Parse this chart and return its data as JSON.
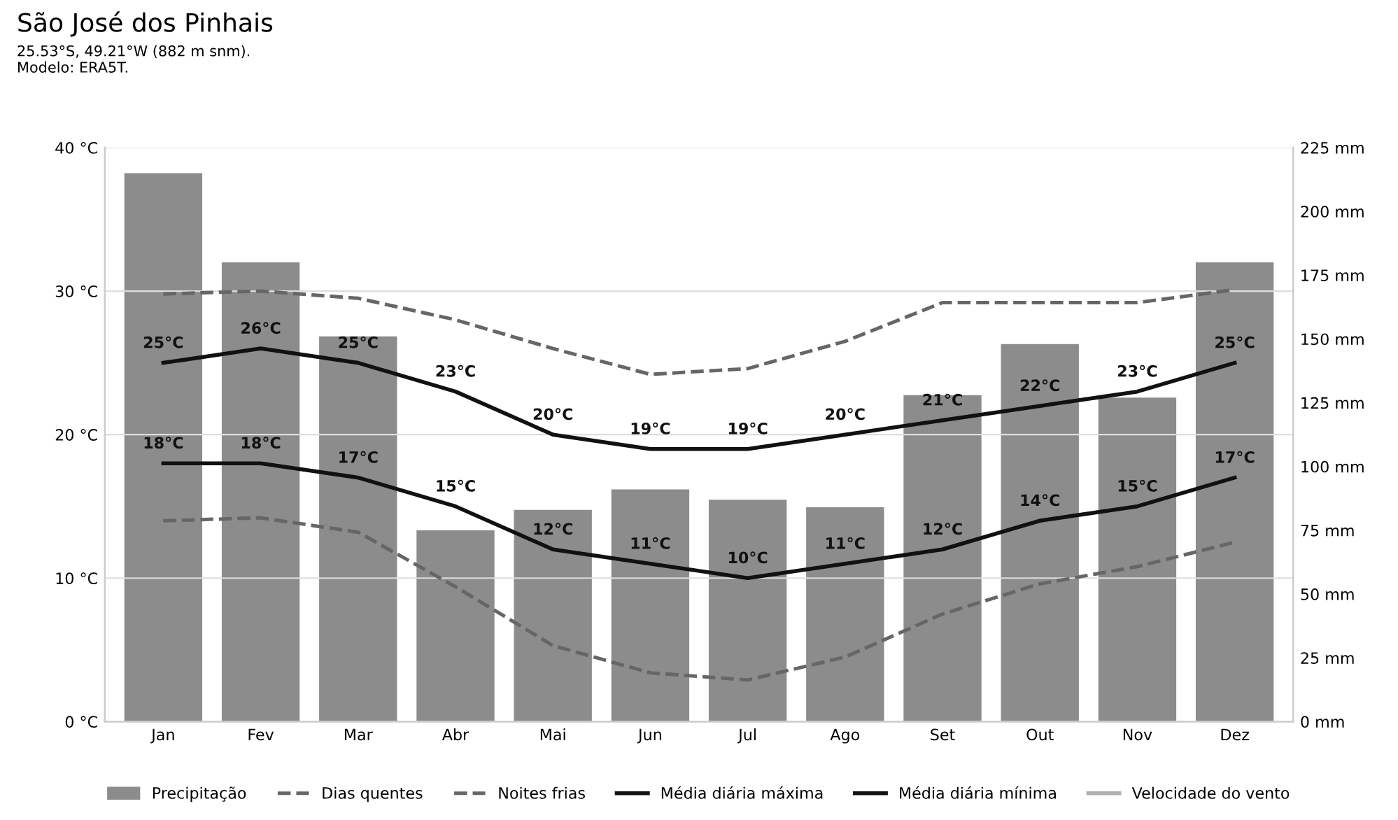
{
  "chart_data": {
    "type": "line",
    "title": "São José dos Pinhais",
    "subtitle": "25.53°S, 49.21°W (882 m snm).\nModelo: ERA5T.",
    "categories": [
      "Jan",
      "Fev",
      "Mar",
      "Abr",
      "Mai",
      "Jun",
      "Jul",
      "Ago",
      "Set",
      "Out",
      "Nov",
      "Dez"
    ],
    "series": [
      {
        "name": "Precipitação",
        "type": "bar",
        "axis": "y2",
        "color": "#8c8c8c",
        "values": [
          215,
          180,
          151,
          75,
          83,
          91,
          87,
          84,
          128,
          148,
          127,
          180
        ]
      },
      {
        "name": "Dias quentes",
        "line_style": "dashed",
        "color": "#666666",
        "values": [
          29.8,
          30,
          29.5,
          28,
          26,
          24.2,
          24.6,
          26.5,
          29.2,
          29.2,
          29.2,
          30.1
        ]
      },
      {
        "name": "Noites frias",
        "line_style": "dashed",
        "color": "#666666",
        "values": [
          14,
          14.2,
          13.2,
          9.4,
          5.3,
          3.4,
          2.9,
          4.5,
          7.5,
          9.6,
          10.8,
          12.5
        ]
      },
      {
        "name": "Média diária máxima",
        "line_style": "solid",
        "color": "#111111",
        "values": [
          25,
          26,
          25,
          23,
          20,
          19,
          19,
          20,
          21,
          22,
          23,
          25
        ],
        "value_labels": [
          "25°C",
          "26°C",
          "25°C",
          "23°C",
          "20°C",
          "19°C",
          "19°C",
          "20°C",
          "21°C",
          "22°C",
          "23°C",
          "25°C"
        ]
      },
      {
        "name": "Média diária mínima",
        "line_style": "solid",
        "color": "#111111",
        "values": [
          18,
          18,
          17,
          15,
          12,
          11,
          10,
          11,
          12,
          14,
          15,
          17
        ],
        "value_labels": [
          "18°C",
          "18°C",
          "17°C",
          "15°C",
          "12°C",
          "11°C",
          "10°C",
          "11°C",
          "12°C",
          "14°C",
          "15°C",
          "17°C"
        ]
      },
      {
        "name": "Velocidade do vento",
        "line_style": "solid",
        "color": "#b0b0b0",
        "values": [
          null,
          null,
          null,
          null,
          null,
          null,
          null,
          null,
          null,
          null,
          null,
          null
        ]
      }
    ],
    "ylim": [
      0,
      40
    ],
    "yticks": [
      {
        "value": 0,
        "label": "0 °C"
      },
      {
        "value": 10,
        "label": "10 °C"
      },
      {
        "value": 20,
        "label": "20 °C"
      },
      {
        "value": 30,
        "label": "30 °C"
      },
      {
        "value": 40,
        "label": "40 °C"
      }
    ],
    "y2lim": [
      0,
      225
    ],
    "y2ticks": [
      {
        "value": 0,
        "label": "0 mm"
      },
      {
        "value": 25,
        "label": "25 mm"
      },
      {
        "value": 50,
        "label": "50 mm"
      },
      {
        "value": 75,
        "label": "75 mm"
      },
      {
        "value": 100,
        "label": "100 mm"
      },
      {
        "value": 125,
        "label": "125 mm"
      },
      {
        "value": 150,
        "label": "150 mm"
      },
      {
        "value": 175,
        "label": "175 mm"
      },
      {
        "value": 200,
        "label": "200 mm"
      },
      {
        "value": 225,
        "label": "225 mm"
      }
    ],
    "grid": "y",
    "legend": "bottom"
  }
}
